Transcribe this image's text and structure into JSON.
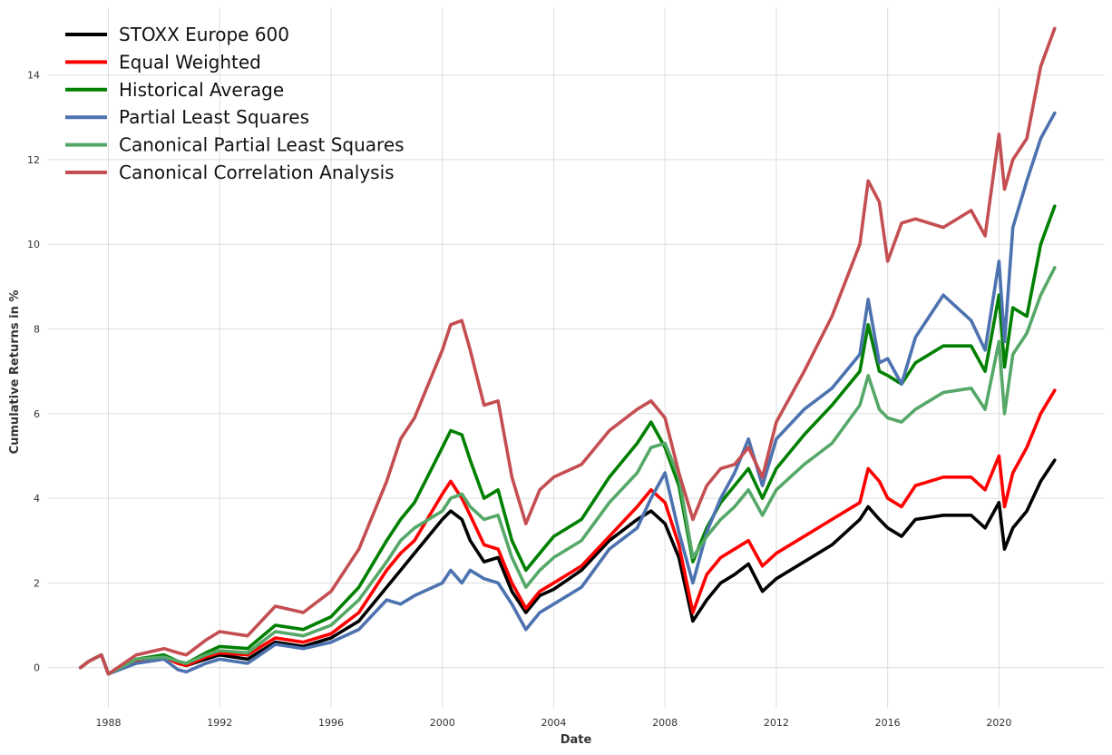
{
  "chart_data": {
    "type": "line",
    "title": "",
    "xlabel": "Date",
    "ylabel": "Cumulative Returns in %",
    "x_range": [
      1985.8,
      2023.8
    ],
    "ylim": [
      -0.95,
      15.6
    ],
    "x_ticks": [
      1988,
      1992,
      1996,
      2000,
      2004,
      2008,
      2012,
      2016,
      2020
    ],
    "x_tick_labels": [
      "1988",
      "1992",
      "1996",
      "2000",
      "2004",
      "2008",
      "2012",
      "2016",
      "2020"
    ],
    "y_ticks": [
      0,
      2,
      4,
      6,
      8,
      10,
      12,
      14
    ],
    "y_tick_labels": [
      "0",
      "2",
      "4",
      "6",
      "8",
      "10",
      "12",
      "14"
    ],
    "grid": true,
    "legend_position": "top-left",
    "x": [
      1987.0,
      1987.3,
      1987.6,
      1987.75,
      1988.0,
      1989.0,
      1990.0,
      1990.5,
      1990.8,
      1991.5,
      1992.0,
      1993.0,
      1994.0,
      1995.0,
      1996.0,
      1997.0,
      1998.0,
      1998.5,
      1999.0,
      2000.0,
      2000.3,
      2000.7,
      2001.0,
      2001.5,
      2002.0,
      2002.5,
      2003.0,
      2003.5,
      2004.0,
      2005.0,
      2006.0,
      2007.0,
      2007.5,
      2008.0,
      2008.5,
      2009.0,
      2009.5,
      2010.0,
      2010.5,
      2011.0,
      2011.5,
      2012.0,
      2013.0,
      2014.0,
      2015.0,
      2015.3,
      2015.7,
      2016.0,
      2016.5,
      2017.0,
      2018.0,
      2019.0,
      2019.5,
      2020.0,
      2020.2,
      2020.5,
      2021.0,
      2021.5,
      2022.0
    ],
    "series": [
      {
        "name": "STOXX Europe 600",
        "color": "#000000",
        "values": [
          0.0,
          0.15,
          0.25,
          0.3,
          -0.15,
          0.15,
          0.25,
          0.1,
          0.05,
          0.2,
          0.3,
          0.2,
          0.6,
          0.5,
          0.7,
          1.1,
          1.9,
          2.3,
          2.7,
          3.5,
          3.7,
          3.5,
          3.0,
          2.5,
          2.6,
          1.8,
          1.3,
          1.7,
          1.85,
          2.3,
          3.0,
          3.5,
          3.7,
          3.4,
          2.6,
          1.1,
          1.6,
          2.0,
          2.2,
          2.45,
          1.8,
          2.1,
          2.5,
          2.9,
          3.5,
          3.8,
          3.5,
          3.3,
          3.1,
          3.5,
          3.6,
          3.6,
          3.3,
          3.9,
          2.8,
          3.3,
          3.7,
          4.4,
          4.9
        ]
      },
      {
        "name": "Equal Weighted",
        "color": "#ff0000",
        "values": [
          0.0,
          0.15,
          0.25,
          0.3,
          -0.15,
          0.15,
          0.25,
          0.1,
          0.05,
          0.25,
          0.35,
          0.3,
          0.7,
          0.6,
          0.8,
          1.3,
          2.3,
          2.7,
          3.0,
          4.1,
          4.4,
          4.0,
          3.6,
          2.9,
          2.8,
          2.0,
          1.4,
          1.8,
          2.0,
          2.4,
          3.1,
          3.8,
          4.2,
          3.9,
          2.9,
          1.3,
          2.2,
          2.6,
          2.8,
          3.0,
          2.4,
          2.7,
          3.1,
          3.5,
          3.9,
          4.7,
          4.4,
          4.0,
          3.8,
          4.3,
          4.5,
          4.5,
          4.2,
          5.0,
          3.8,
          4.6,
          5.2,
          6.0,
          6.55
        ]
      },
      {
        "name": "Historical Average",
        "color": "#008000",
        "values": [
          0.0,
          0.15,
          0.25,
          0.3,
          -0.15,
          0.2,
          0.3,
          0.15,
          0.1,
          0.35,
          0.5,
          0.45,
          1.0,
          0.9,
          1.2,
          1.9,
          3.0,
          3.5,
          3.9,
          5.2,
          5.6,
          5.5,
          4.9,
          4.0,
          4.2,
          3.0,
          2.3,
          2.7,
          3.1,
          3.5,
          4.5,
          5.3,
          5.8,
          5.2,
          4.3,
          2.5,
          3.3,
          3.9,
          4.3,
          4.7,
          4.0,
          4.7,
          5.5,
          6.2,
          7.0,
          8.1,
          7.0,
          6.9,
          6.7,
          7.2,
          7.6,
          7.6,
          7.0,
          8.8,
          7.1,
          8.5,
          8.3,
          10.0,
          10.9
        ]
      },
      {
        "name": "Partial Least Squares",
        "color": "#4c72b0",
        "values": [
          0.0,
          0.15,
          0.25,
          0.3,
          -0.15,
          0.1,
          0.2,
          -0.05,
          -0.1,
          0.1,
          0.2,
          0.1,
          0.55,
          0.45,
          0.6,
          0.9,
          1.6,
          1.5,
          1.7,
          2.0,
          2.3,
          2.0,
          2.3,
          2.1,
          2.0,
          1.5,
          0.9,
          1.3,
          1.5,
          1.9,
          2.8,
          3.3,
          4.0,
          4.6,
          3.2,
          2.0,
          3.2,
          4.0,
          4.6,
          5.4,
          4.3,
          5.4,
          6.1,
          6.6,
          7.4,
          8.7,
          7.2,
          7.3,
          6.7,
          7.8,
          8.8,
          8.2,
          7.5,
          9.6,
          7.7,
          10.4,
          11.5,
          12.5,
          13.1
        ]
      },
      {
        "name": "Canonical Partial Least Squares",
        "color": "#55a868",
        "values": [
          0.0,
          0.15,
          0.25,
          0.3,
          -0.15,
          0.2,
          0.25,
          0.15,
          0.1,
          0.3,
          0.4,
          0.35,
          0.85,
          0.75,
          1.0,
          1.6,
          2.5,
          3.0,
          3.3,
          3.7,
          4.0,
          4.1,
          3.8,
          3.5,
          3.6,
          2.6,
          1.9,
          2.3,
          2.6,
          3.0,
          3.9,
          4.6,
          5.2,
          5.3,
          4.5,
          2.6,
          3.1,
          3.5,
          3.8,
          4.2,
          3.6,
          4.2,
          4.8,
          5.3,
          6.2,
          6.9,
          6.1,
          5.9,
          5.8,
          6.1,
          6.5,
          6.6,
          6.1,
          7.7,
          6.0,
          7.4,
          7.9,
          8.8,
          9.45
        ]
      },
      {
        "name": "Canonical Correlation Analysis",
        "color": "#c44e52",
        "values": [
          0.0,
          0.15,
          0.25,
          0.3,
          -0.15,
          0.3,
          0.45,
          0.35,
          0.3,
          0.65,
          0.85,
          0.75,
          1.45,
          1.3,
          1.8,
          2.8,
          4.4,
          5.4,
          5.9,
          7.5,
          8.1,
          8.2,
          7.5,
          6.2,
          6.3,
          4.5,
          3.4,
          4.2,
          4.5,
          4.8,
          5.6,
          6.1,
          6.3,
          5.9,
          4.6,
          3.5,
          4.3,
          4.7,
          4.8,
          5.2,
          4.5,
          5.8,
          7.0,
          8.3,
          10.0,
          11.5,
          11.0,
          9.6,
          10.5,
          10.6,
          10.4,
          10.8,
          10.2,
          12.6,
          11.3,
          12.0,
          12.5,
          14.2,
          15.1
        ]
      }
    ]
  }
}
